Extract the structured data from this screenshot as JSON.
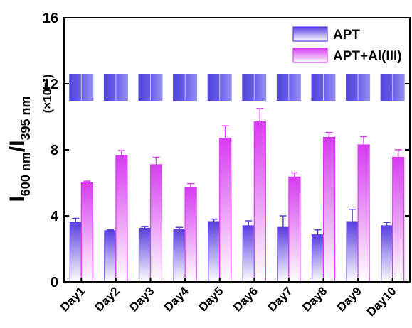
{
  "chart_data": {
    "type": "bar",
    "categories": [
      "Day1",
      "Day2",
      "Day3",
      "Day4",
      "Day5",
      "Day6",
      "Day7",
      "Day8",
      "Day9",
      "Day10"
    ],
    "series": [
      {
        "name": "APT",
        "color": "#5a3ee0",
        "values": [
          3.6,
          3.1,
          3.25,
          3.2,
          3.65,
          3.4,
          3.3,
          2.85,
          3.65,
          3.4
        ],
        "errors": [
          0.25,
          0.05,
          0.1,
          0.1,
          0.15,
          0.3,
          0.7,
          0.3,
          0.75,
          0.2
        ]
      },
      {
        "name": "APT+Al(III)",
        "color": "#d63cf0",
        "values": [
          6.0,
          7.65,
          7.1,
          5.7,
          8.7,
          9.7,
          6.35,
          8.75,
          8.3,
          7.55
        ],
        "errors": [
          0.1,
          0.3,
          0.45,
          0.25,
          0.75,
          0.8,
          0.25,
          0.3,
          0.5,
          0.45
        ]
      }
    ],
    "y_label": {
      "i1": "I",
      "sub1": "600 nm",
      "i2": "/I",
      "sub2": "395 nm"
    },
    "y_scale_note": "(×10⁻²)",
    "ylim": [
      0,
      16
    ],
    "yticks": [
      0,
      4,
      8,
      12,
      16
    ],
    "legend": "upper right"
  }
}
